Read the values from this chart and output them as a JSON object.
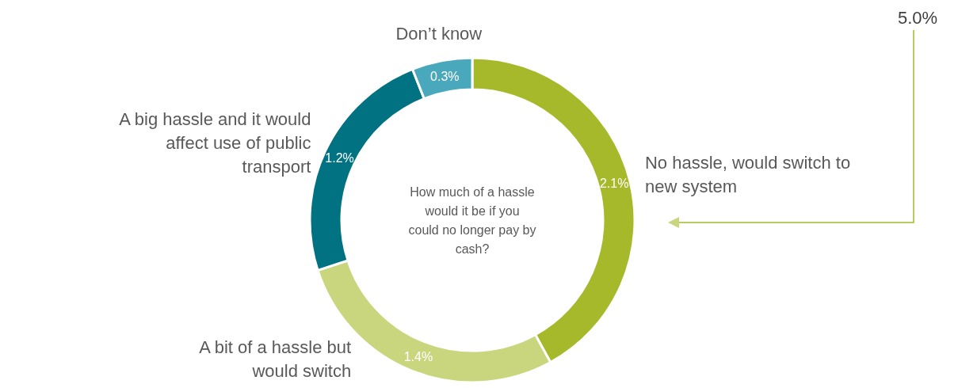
{
  "chart_data": {
    "type": "donut",
    "title": "How much of a hassle would it be if you could no longer pay by cash?",
    "categories": [
      "No hassle, would switch to new system",
      "A bit of a hassle but would switch",
      "A big hassle and it would affect use of public transport",
      "Don’t know"
    ],
    "values": [
      2.1,
      1.4,
      1.2,
      0.3
    ],
    "colors": [
      "#a5b92a",
      "#c9d67e",
      "#007281",
      "#4aa8bd"
    ],
    "value_labels": [
      "2.1%",
      "1.4%",
      "1.2%",
      "0.3%"
    ],
    "annotations": [
      "5.0%"
    ]
  }
}
